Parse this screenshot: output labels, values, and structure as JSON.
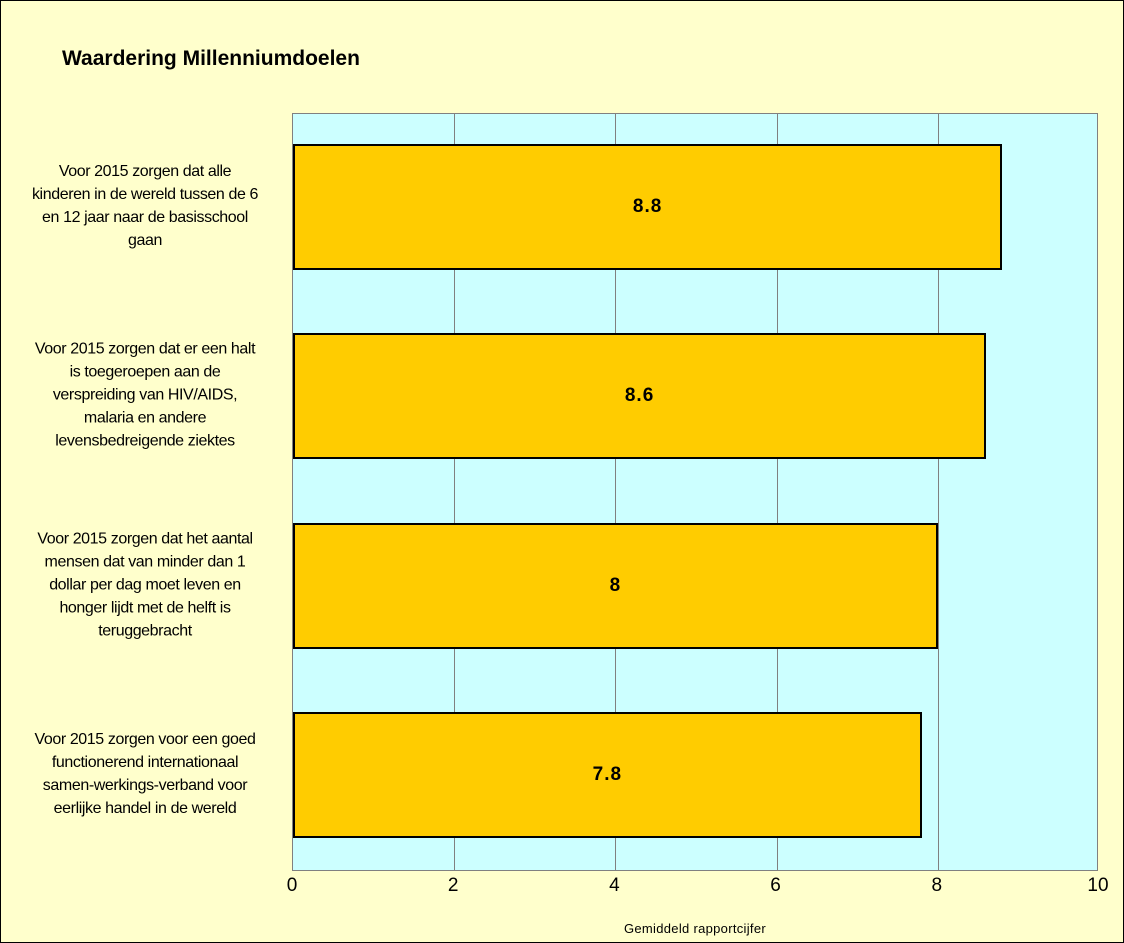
{
  "chart_data": {
    "type": "bar",
    "orientation": "horizontal",
    "title": "Waardering Millenniumdoelen",
    "xlabel": "Gemiddeld rapportcijfer",
    "ylabel": "",
    "xlim": [
      0,
      10
    ],
    "ticks": [
      "0",
      "2",
      "4",
      "6",
      "8",
      "10"
    ],
    "grid": true,
    "legend": "none",
    "categories": [
      [
        "Voor 2015 zorgen dat alle",
        "kinderen in de wereld tussen de 6",
        "en 12 jaar naar de basisschool",
        "gaan"
      ],
      [
        "Voor 2015 zorgen dat er een halt",
        "is toegeroepen aan de",
        "verspreiding van HIV/AIDS,",
        "malaria en andere",
        "levensbedreigende ziektes"
      ],
      [
        "Voor 2015 zorgen dat het aantal",
        "mensen dat van minder dan 1",
        "dollar per dag moet leven en",
        "honger lijdt met de helft is",
        "teruggebracht"
      ],
      [
        "Voor 2015 zorgen voor een goed",
        "functionerend internationaal",
        "samen-werkings-verband voor",
        "eerlijke handel in de wereld"
      ]
    ],
    "values": [
      8.8,
      8.6,
      8,
      7.8
    ],
    "data_labels": [
      "8.8",
      "8.6",
      "8",
      "7.8"
    ],
    "colors": {
      "bar": "#FFCC00",
      "plot_background": "#CCFFFF",
      "chart_background": "#FFFFCC",
      "grid": "#808080"
    }
  }
}
